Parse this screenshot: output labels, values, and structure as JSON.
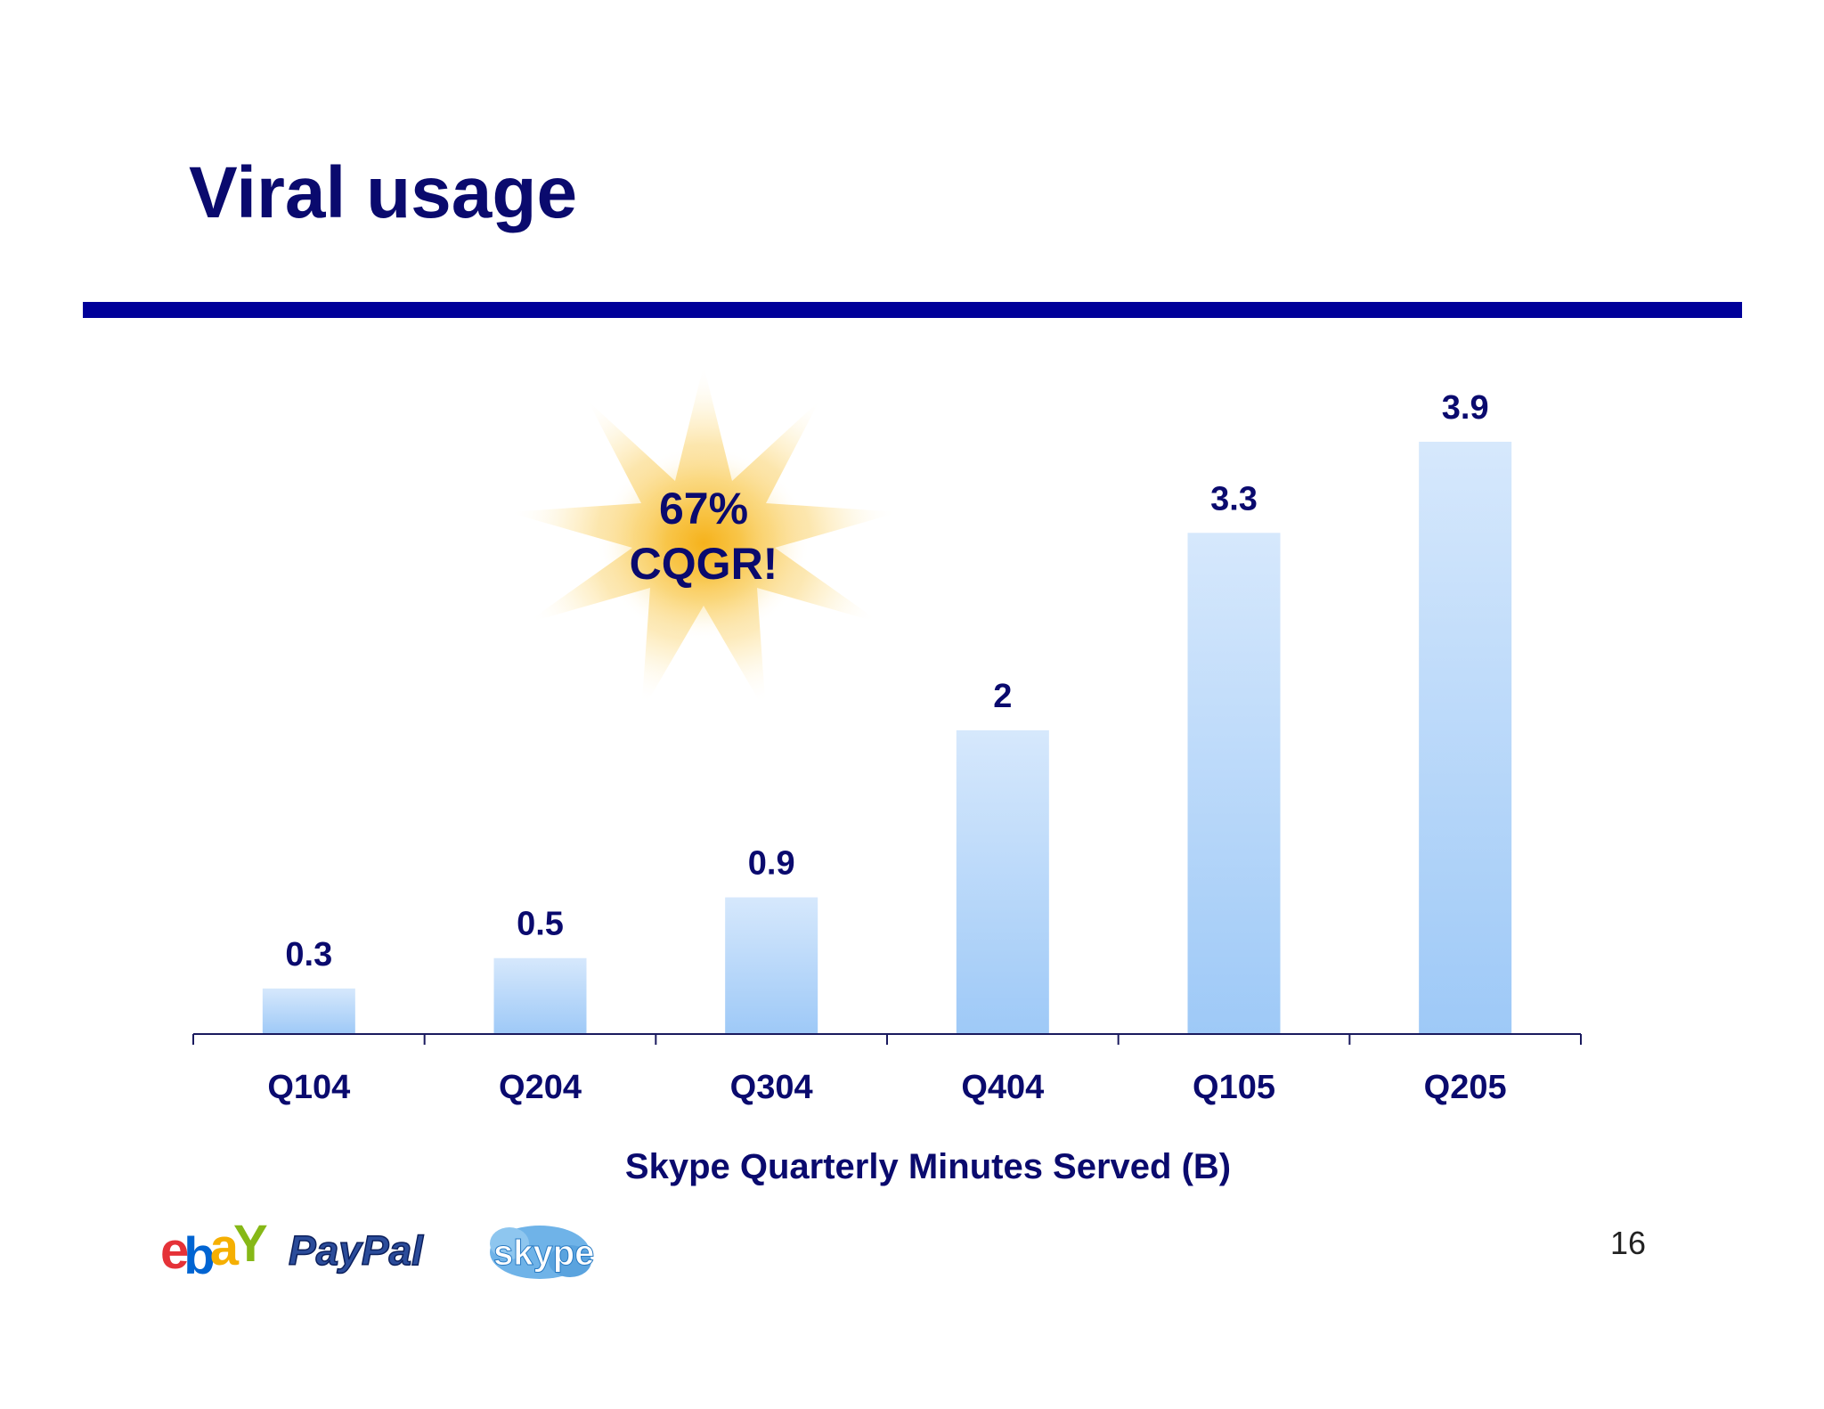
{
  "slide": {
    "title": "Viral usage",
    "page_number": "16"
  },
  "callout": {
    "line1": "67%",
    "line2": "CQGR!"
  },
  "logos": {
    "ebay": "ebay",
    "paypal": "PayPal",
    "skype": "skype"
  },
  "colors": {
    "title": "#0a0a6e",
    "rule": "#000099",
    "bar_top": "#d6e8fc",
    "bar_bottom": "#9ec9f7",
    "axis": "#1a1a5e"
  },
  "chart_data": {
    "type": "bar",
    "categories": [
      "Q104",
      "Q204",
      "Q304",
      "Q404",
      "Q105",
      "Q205"
    ],
    "values": [
      0.3,
      0.5,
      0.9,
      2,
      3.3,
      3.9
    ],
    "data_labels": [
      "0.3",
      "0.5",
      "0.9",
      "2",
      "3.3",
      "3.9"
    ],
    "title": "",
    "xlabel": "Skype Quarterly Minutes Served (B)",
    "ylabel": "",
    "ylim": [
      0,
      3.9
    ],
    "grid": false,
    "legend": "none"
  }
}
